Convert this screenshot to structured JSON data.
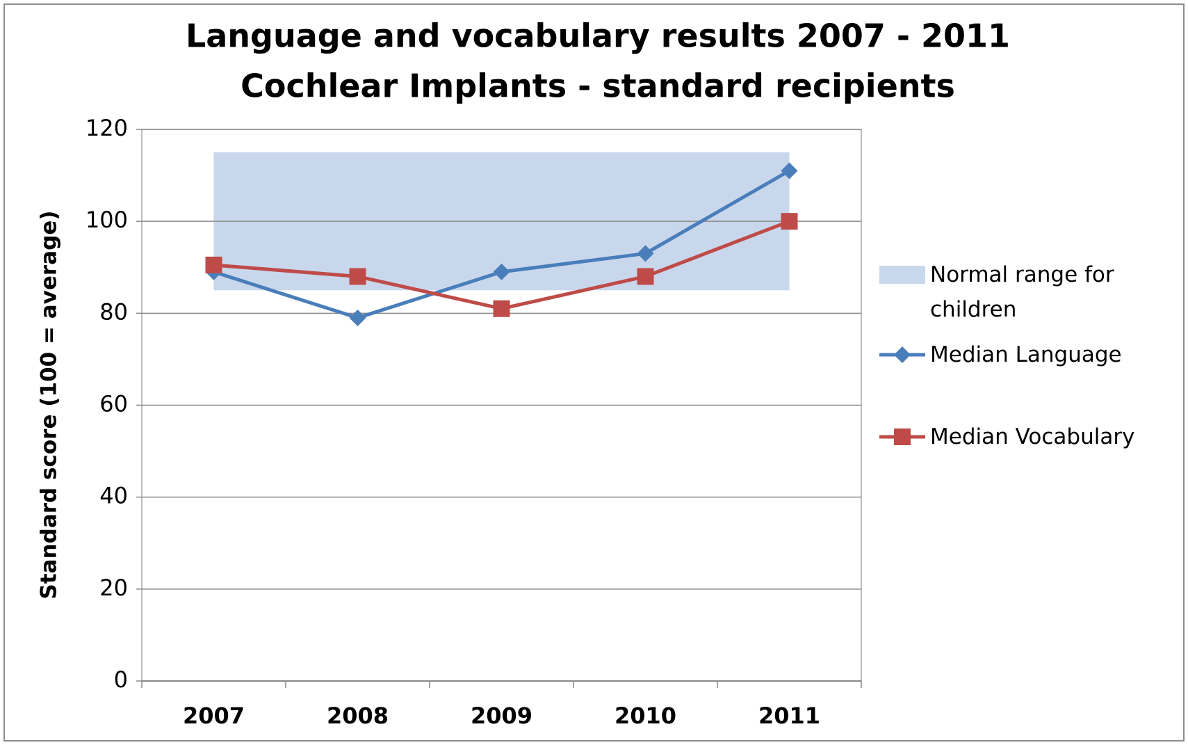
{
  "chart_data": {
    "type": "line",
    "title": "Language and vocabulary results 2007 - 2011",
    "subtitle": "Cochlear Implants - standard recipients",
    "y_label": "Standard score (100 = average)",
    "categories": [
      "2007",
      "2008",
      "2009",
      "2010",
      "2011"
    ],
    "normal_range": {
      "name": "Normal range for children",
      "color": "#c9d7ec",
      "low": 85,
      "high": 115
    },
    "series": [
      {
        "name": "Median Language",
        "color": "#4a7ebb",
        "marker": "diamond",
        "values": [
          89,
          79,
          89,
          93,
          111
        ]
      },
      {
        "name": "Median Vocabulary",
        "color": "#be4b48",
        "marker": "square",
        "values": [
          90.5,
          88,
          81,
          88,
          100
        ]
      }
    ],
    "ylim": [
      0,
      120
    ],
    "yticks": [
      0,
      20,
      40,
      60,
      80,
      100,
      120
    ],
    "grid": true,
    "legend": "right"
  }
}
